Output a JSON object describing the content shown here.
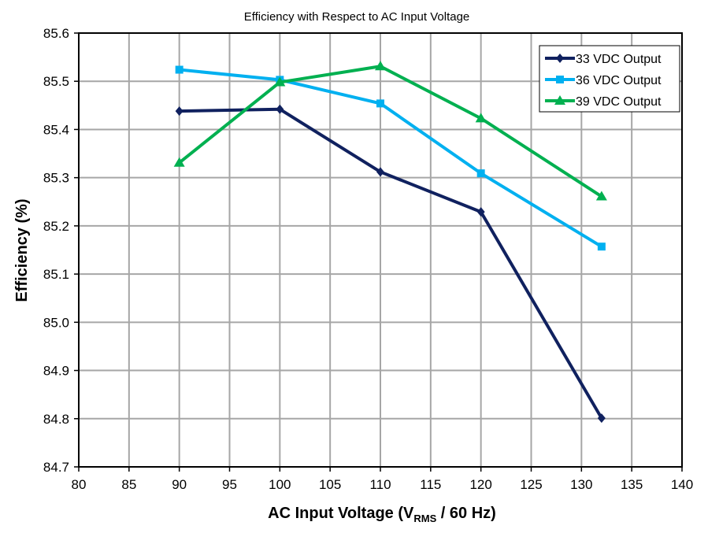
{
  "chart_data": {
    "type": "line",
    "title": "Efficiency with Respect to AC Input Voltage",
    "xlabel": "AC Input Voltage (V",
    "xlabel_sub": "RMS",
    "xlabel_tail": " / 60 Hz)",
    "ylabel": "Efficiency (%)",
    "xlim": [
      80,
      140
    ],
    "ylim": [
      84.7,
      85.6
    ],
    "xticks": [
      80,
      85,
      90,
      95,
      100,
      105,
      110,
      115,
      120,
      125,
      130,
      135,
      140
    ],
    "yticks": [
      84.7,
      84.8,
      84.9,
      85.0,
      85.1,
      85.2,
      85.3,
      85.4,
      85.5,
      85.6
    ],
    "grid": true,
    "legend_position": "top-right",
    "series": [
      {
        "name": "33 VDC Output",
        "color": "#10215f",
        "marker": "diamond",
        "x": [
          90,
          100,
          110,
          120,
          132
        ],
        "y": [
          85.438,
          85.442,
          85.312,
          85.229,
          84.801
        ]
      },
      {
        "name": "36 VDC Output",
        "color": "#00b0f0",
        "marker": "square",
        "x": [
          90,
          100,
          110,
          120,
          132
        ],
        "y": [
          85.524,
          85.503,
          85.454,
          85.309,
          85.157
        ]
      },
      {
        "name": "39 VDC Output",
        "color": "#00b050",
        "marker": "triangle",
        "x": [
          90,
          100,
          110,
          120,
          132
        ],
        "y": [
          85.331,
          85.498,
          85.531,
          85.423,
          85.261
        ]
      }
    ]
  }
}
